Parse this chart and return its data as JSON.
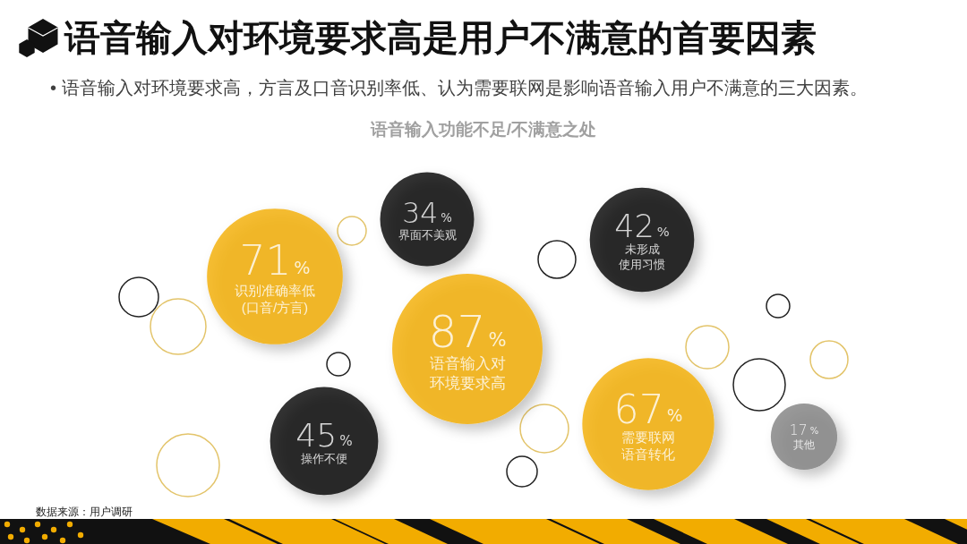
{
  "chart_data": {
    "type": "other",
    "title": "语音输入对环境要求高是用户不满意的首要因素",
    "subtitle": "• 语音输入对环境要求高，方言及口音识别率低、认为需要联网是影响语音输入用户不满意的三大因素。",
    "annotations": [
      "语音输入功能不足/不满意之处",
      "数据来源：用户调研"
    ],
    "categories": [
      "识别准确率低(口音/方言)",
      "操作不便",
      "界面不美观",
      "语音输入对环境要求高",
      "未形成使用习惯",
      "需要联网语音转化",
      "其他"
    ],
    "values": [
      71,
      45,
      34,
      87,
      42,
      67,
      17
    ],
    "value_labels": [
      "71%",
      "45%",
      "34%",
      "87%",
      "42%",
      "67%",
      "17%"
    ],
    "colors": [
      "#f2ac00",
      "#000000",
      "#000000",
      "#f2ac00",
      "#000000",
      "#f2ac00",
      "#808080"
    ]
  }
}
